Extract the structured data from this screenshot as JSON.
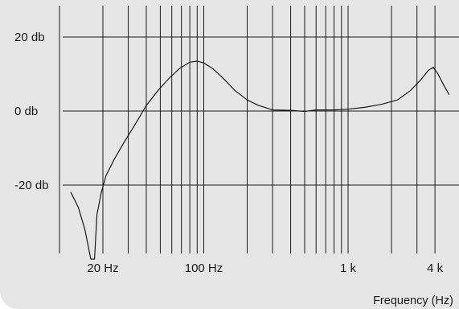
{
  "chart_data": {
    "type": "line",
    "title": "",
    "xlabel": "Frequency (Hz)",
    "ylabel": "",
    "x_scale": "log",
    "xlim": [
      10,
      5000
    ],
    "ylim": [
      -40,
      30
    ],
    "grid": true,
    "x_gridlines": [
      10,
      20,
      30,
      40,
      50,
      60,
      70,
      80,
      90,
      100,
      200,
      300,
      400,
      500,
      600,
      700,
      800,
      900,
      1000,
      2000,
      3000,
      4000
    ],
    "x_ticks": [
      {
        "value": 20,
        "label": "20 Hz"
      },
      {
        "value": 100,
        "label": "100 Hz"
      },
      {
        "value": 1000,
        "label": "1 k"
      },
      {
        "value": 4000,
        "label": "4 k"
      }
    ],
    "y_ticks": [
      {
        "value": 20,
        "label": "20 db"
      },
      {
        "value": 0,
        "label": "0 db"
      },
      {
        "value": -20,
        "label": "-20 db"
      }
    ],
    "line_color": "#1a1a1a",
    "grid_color": "#1a1a1a",
    "series": [
      {
        "values": [
          [
            12,
            -22
          ],
          [
            13.5,
            -26
          ],
          [
            15,
            -32
          ],
          [
            16.5,
            -40
          ],
          [
            17.5,
            -40
          ],
          [
            18.2,
            -28
          ],
          [
            19.5,
            -22
          ],
          [
            21,
            -17.5
          ],
          [
            24,
            -13
          ],
          [
            28,
            -8.5
          ],
          [
            33,
            -4
          ],
          [
            40,
            1.5
          ],
          [
            48,
            5.5
          ],
          [
            58,
            9
          ],
          [
            68,
            11.5
          ],
          [
            80,
            13.2
          ],
          [
            90,
            13.5
          ],
          [
            100,
            13
          ],
          [
            115,
            11.5
          ],
          [
            135,
            9
          ],
          [
            165,
            5.5
          ],
          [
            200,
            3
          ],
          [
            240,
            1.5
          ],
          [
            300,
            0.3
          ],
          [
            400,
            0.2
          ],
          [
            500,
            -0.1
          ],
          [
            600,
            0.3
          ],
          [
            800,
            0.3
          ],
          [
            1000,
            0.5
          ],
          [
            1300,
            1
          ],
          [
            1700,
            1.8
          ],
          [
            2200,
            3
          ],
          [
            2700,
            5.5
          ],
          [
            3200,
            8.5
          ],
          [
            3600,
            11
          ],
          [
            3900,
            11.8
          ],
          [
            4200,
            10
          ],
          [
            4600,
            7
          ],
          [
            5000,
            4.5
          ]
        ]
      }
    ]
  }
}
